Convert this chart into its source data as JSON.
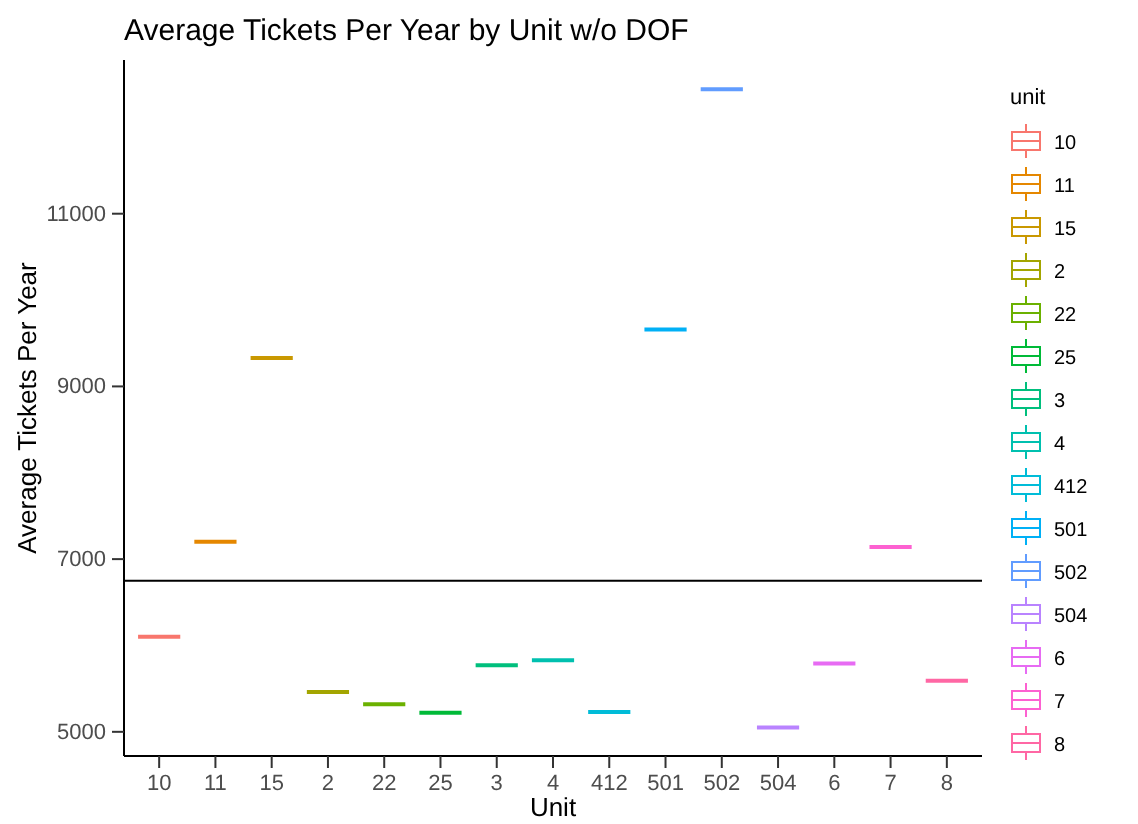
{
  "chart_data": {
    "type": "box",
    "title": "Average Tickets Per Year by Unit w/o DOF",
    "xlabel": "Unit",
    "ylabel": "Average Tickets Per Year",
    "legend_title": "unit",
    "legend": "right",
    "grid": false,
    "categories": [
      "10",
      "11",
      "15",
      "2",
      "22",
      "25",
      "3",
      "4",
      "412",
      "501",
      "502",
      "504",
      "6",
      "7",
      "8"
    ],
    "series": [
      {
        "name": "10",
        "color": "#f8766d",
        "boxes": [
          {
            "low": 6100,
            "q1": 6100,
            "median": 6100,
            "q3": 6100,
            "high": 6100
          },
          null,
          null,
          null,
          null,
          null,
          null,
          null,
          null,
          null,
          null,
          null,
          null,
          null,
          null
        ]
      },
      {
        "name": "11",
        "color": "#e58700",
        "boxes": [
          null,
          {
            "low": 7200,
            "q1": 7200,
            "median": 7200,
            "q3": 7200,
            "high": 7200
          },
          null,
          null,
          null,
          null,
          null,
          null,
          null,
          null,
          null,
          null,
          null,
          null,
          null
        ]
      },
      {
        "name": "15",
        "color": "#c99800",
        "boxes": [
          null,
          null,
          {
            "low": 9330,
            "q1": 9330,
            "median": 9330,
            "q3": 9330,
            "high": 9330
          },
          null,
          null,
          null,
          null,
          null,
          null,
          null,
          null,
          null,
          null,
          null,
          null
        ]
      },
      {
        "name": "2",
        "color": "#a3a500",
        "boxes": [
          null,
          null,
          null,
          {
            "low": 5460,
            "q1": 5460,
            "median": 5460,
            "q3": 5460,
            "high": 5460
          },
          null,
          null,
          null,
          null,
          null,
          null,
          null,
          null,
          null,
          null,
          null
        ]
      },
      {
        "name": "22",
        "color": "#6bb100",
        "boxes": [
          null,
          null,
          null,
          null,
          {
            "low": 5320,
            "q1": 5320,
            "median": 5320,
            "q3": 5320,
            "high": 5320
          },
          null,
          null,
          null,
          null,
          null,
          null,
          null,
          null,
          null,
          null
        ]
      },
      {
        "name": "25",
        "color": "#00ba38",
        "boxes": [
          null,
          null,
          null,
          null,
          null,
          {
            "low": 5220,
            "q1": 5220,
            "median": 5220,
            "q3": 5220,
            "high": 5220
          },
          null,
          null,
          null,
          null,
          null,
          null,
          null,
          null,
          null
        ]
      },
      {
        "name": "3",
        "color": "#00bf7d",
        "boxes": [
          null,
          null,
          null,
          null,
          null,
          null,
          {
            "low": 5770,
            "q1": 5770,
            "median": 5770,
            "q3": 5770,
            "high": 5770
          },
          null,
          null,
          null,
          null,
          null,
          null,
          null,
          null
        ]
      },
      {
        "name": "4",
        "color": "#00c0af",
        "boxes": [
          null,
          null,
          null,
          null,
          null,
          null,
          null,
          {
            "low": 5830,
            "q1": 5830,
            "median": 5830,
            "q3": 5830,
            "high": 5830
          },
          null,
          null,
          null,
          null,
          null,
          null,
          null
        ]
      },
      {
        "name": "412",
        "color": "#00bcd8",
        "boxes": [
          null,
          null,
          null,
          null,
          null,
          null,
          null,
          null,
          {
            "low": 5230,
            "q1": 5230,
            "median": 5230,
            "q3": 5230,
            "high": 5230
          },
          null,
          null,
          null,
          null,
          null,
          null
        ]
      },
      {
        "name": "501",
        "color": "#00b0f6",
        "boxes": [
          null,
          null,
          null,
          null,
          null,
          null,
          null,
          null,
          null,
          {
            "low": 9660,
            "q1": 9660,
            "median": 9660,
            "q3": 9660,
            "high": 9660
          },
          null,
          null,
          null,
          null,
          null
        ]
      },
      {
        "name": "502",
        "color": "#619cff",
        "boxes": [
          null,
          null,
          null,
          null,
          null,
          null,
          null,
          null,
          null,
          null,
          {
            "low": 12440,
            "q1": 12440,
            "median": 12440,
            "q3": 12440,
            "high": 12440
          },
          null,
          null,
          null,
          null
        ]
      },
      {
        "name": "504",
        "color": "#b983ff",
        "boxes": [
          null,
          null,
          null,
          null,
          null,
          null,
          null,
          null,
          null,
          null,
          null,
          {
            "low": 5050,
            "q1": 5050,
            "median": 5050,
            "q3": 5050,
            "high": 5050
          },
          null,
          null,
          null
        ]
      },
      {
        "name": "6",
        "color": "#e76bf3",
        "boxes": [
          null,
          null,
          null,
          null,
          null,
          null,
          null,
          null,
          null,
          null,
          null,
          null,
          {
            "low": 5790,
            "q1": 5790,
            "median": 5790,
            "q3": 5790,
            "high": 5790
          },
          null,
          null
        ]
      },
      {
        "name": "7",
        "color": "#fd61d1",
        "boxes": [
          null,
          null,
          null,
          null,
          null,
          null,
          null,
          null,
          null,
          null,
          null,
          null,
          null,
          {
            "low": 7140,
            "q1": 7140,
            "median": 7140,
            "q3": 7140,
            "high": 7140
          },
          null
        ]
      },
      {
        "name": "8",
        "color": "#ff67a4",
        "boxes": [
          null,
          null,
          null,
          null,
          null,
          null,
          null,
          null,
          null,
          null,
          null,
          null,
          null,
          null,
          {
            "low": 5590,
            "q1": 5590,
            "median": 5590,
            "q3": 5590,
            "high": 5590
          }
        ]
      }
    ],
    "ylim": [
      4720,
      12780
    ],
    "yticks": [
      5000,
      7000,
      9000,
      11000
    ],
    "ref_lines": [
      {
        "axis": "y",
        "value": 6750,
        "color": "#000000"
      }
    ]
  }
}
